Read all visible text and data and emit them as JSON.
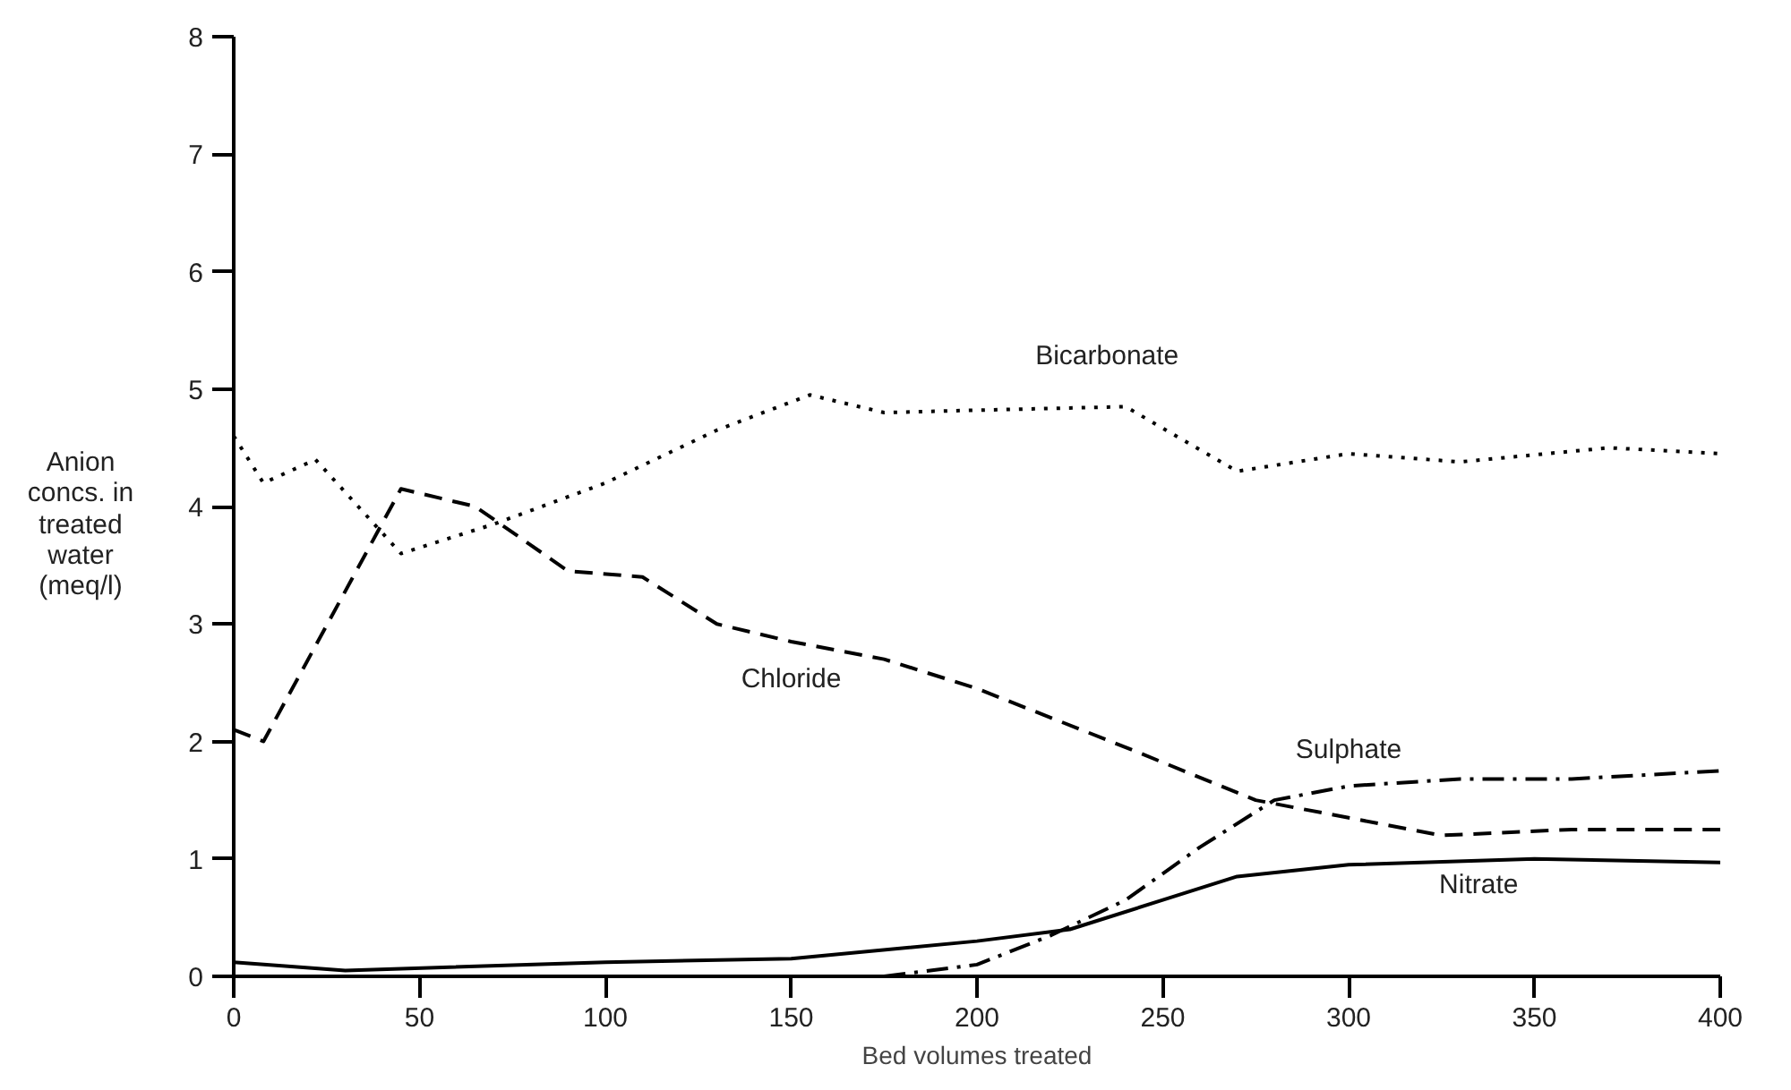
{
  "chart_data": {
    "type": "line",
    "xlabel": "Bed volumes treated",
    "ylabel": "Anion concs. in treated water (meq/l)",
    "xlim": [
      0,
      400
    ],
    "ylim": [
      0,
      8
    ],
    "xticks": [
      0,
      50,
      100,
      150,
      200,
      250,
      300,
      350,
      400
    ],
    "yticks": [
      0,
      1,
      2,
      3,
      4,
      5,
      6,
      7,
      8
    ],
    "grid": false,
    "series": [
      {
        "name": "Bicarbonate",
        "color": "#000000",
        "line_style": "dotted",
        "x": [
          0,
          8,
          22,
          45,
          70,
          100,
          130,
          155,
          175,
          200,
          240,
          270,
          300,
          330,
          370,
          400
        ],
        "values": [
          4.6,
          4.2,
          4.4,
          3.6,
          3.85,
          4.2,
          4.65,
          4.95,
          4.8,
          4.82,
          4.85,
          4.3,
          4.45,
          4.38,
          4.5,
          4.45
        ]
      },
      {
        "name": "Chloride",
        "color": "#000000",
        "line_style": "dashed",
        "x": [
          0,
          8,
          45,
          65,
          90,
          110,
          130,
          150,
          175,
          200,
          240,
          275,
          300,
          325,
          360,
          400
        ],
        "values": [
          2.1,
          2.0,
          4.15,
          4.0,
          3.45,
          3.4,
          3.0,
          2.85,
          2.7,
          2.45,
          1.95,
          1.5,
          1.35,
          1.2,
          1.25,
          1.25
        ]
      },
      {
        "name": "Sulphate",
        "color": "#000000",
        "line_style": "dashdot",
        "x": [
          175,
          200,
          220,
          240,
          260,
          280,
          300,
          330,
          360,
          400
        ],
        "values": [
          0.0,
          0.1,
          0.35,
          0.65,
          1.1,
          1.5,
          1.62,
          1.68,
          1.68,
          1.75
        ]
      },
      {
        "name": "Nitrate",
        "color": "#000000",
        "line_style": "solid",
        "x": [
          0,
          30,
          100,
          150,
          200,
          225,
          250,
          270,
          300,
          350,
          400
        ],
        "values": [
          0.12,
          0.05,
          0.12,
          0.15,
          0.3,
          0.4,
          0.65,
          0.85,
          0.95,
          1.0,
          0.97
        ]
      }
    ]
  }
}
